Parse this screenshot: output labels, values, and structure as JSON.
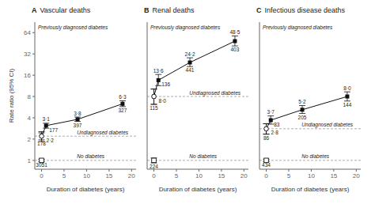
{
  "chart_data": [
    {
      "type": "scatter",
      "panel_label": "A",
      "title": "Vascular deaths",
      "x_label": "Duration of diabetes (years)",
      "y_label": "Rate ratio (95% CI)",
      "log": "y",
      "grid": false,
      "xlim": [
        -1.5,
        21
      ],
      "xticks": [
        0,
        5,
        10,
        15,
        20
      ],
      "ylim": [
        0.75,
        90
      ],
      "yticks": [
        1,
        2,
        4,
        8,
        16,
        32,
        64
      ],
      "series": [
        {
          "name": "Previously diagnosed diabetes",
          "type": "line",
          "marker": "filled_square",
          "line_style": "solid",
          "color": "#111111",
          "x": [
            0,
            1,
            8,
            18
          ],
          "values": [
            2.2,
            3.1,
            3.8,
            6.3
          ],
          "error_lo": [
            0.35,
            0.25,
            0.25,
            0.55
          ],
          "error_hi": [
            0.35,
            0.25,
            0.3,
            0.65
          ],
          "data_labels": true,
          "value_labels": [
            "2·2",
            "3·1",
            "3·8",
            "6·3"
          ],
          "n_labels": [
            null,
            "177",
            "397",
            "327"
          ]
        },
        {
          "name": "Undiagnosed diabetes",
          "type": "scatter",
          "marker": "open_circle",
          "line_style": "dashed",
          "color": "#111111",
          "x": [
            0
          ],
          "values": [
            2.2
          ],
          "error_lo": [
            0.25
          ],
          "error_hi": [
            0.25
          ],
          "n_labels": [
            "178"
          ]
        },
        {
          "name": "No diabetes",
          "type": "scatter",
          "marker": "open_square",
          "line_style": "dashed",
          "color": "#111111",
          "x": [
            0
          ],
          "values": [
            1.0
          ],
          "error_lo": [
            0.04
          ],
          "error_hi": [
            0.04
          ],
          "n_labels": [
            "3051"
          ]
        }
      ]
    },
    {
      "type": "scatter",
      "panel_label": "B",
      "title": "Renal deaths",
      "x_label": "Duration of diabetes (years)",
      "log": "y",
      "grid": false,
      "tick_labels": "x",
      "xlim": [
        -1.5,
        21
      ],
      "xticks": [
        0,
        5,
        10,
        15,
        20
      ],
      "ylim": [
        0.75,
        90
      ],
      "yticks": [
        1,
        2,
        4,
        8,
        16,
        32,
        64
      ],
      "series": [
        {
          "name": "Previously diagnosed diabetes",
          "type": "line",
          "marker": "filled_square",
          "line_style": "solid",
          "color": "#111111",
          "x": [
            0,
            1,
            8,
            18
          ],
          "values": [
            8.0,
            13.6,
            24.2,
            48.5
          ],
          "error_lo": [
            1.8,
            2.2,
            3.0,
            7.0
          ],
          "error_hi": [
            2.2,
            2.8,
            4.0,
            9.0
          ],
          "data_labels": true,
          "value_labels": [
            "8·0",
            "13·6",
            "24·2",
            "48·5"
          ],
          "n_labels": [
            null,
            "136",
            "441",
            "403"
          ]
        },
        {
          "name": "Undiagnosed diabetes",
          "type": "scatter",
          "marker": "open_circle",
          "line_style": "dashed",
          "color": "#111111",
          "x": [
            0
          ],
          "values": [
            8.0
          ],
          "error_lo": [
            1.8
          ],
          "error_hi": [
            2.2
          ],
          "n_labels": [
            "115"
          ]
        },
        {
          "name": "No diabetes",
          "type": "scatter",
          "marker": "open_square",
          "line_style": "dashed",
          "color": "#111111",
          "x": [
            0
          ],
          "values": [
            1.0
          ],
          "error_lo": [
            0.08
          ],
          "error_hi": [
            0.08
          ],
          "n_labels": [
            "224"
          ]
        }
      ]
    },
    {
      "type": "scatter",
      "panel_label": "C",
      "title": "Infectious disease deaths",
      "x_label": "Duration of diabetes (years)",
      "log": "y",
      "grid": false,
      "tick_labels": "x",
      "xlim": [
        -1.5,
        21
      ],
      "xticks": [
        0,
        5,
        10,
        15,
        20
      ],
      "ylim": [
        0.75,
        90
      ],
      "yticks": [
        1,
        2,
        4,
        8,
        16,
        32,
        64
      ],
      "series": [
        {
          "name": "Previously diagnosed diabetes",
          "type": "line",
          "marker": "filled_square",
          "line_style": "solid",
          "color": "#111111",
          "x": [
            0,
            1,
            8,
            18
          ],
          "values": [
            2.8,
            3.7,
            5.2,
            8.0
          ],
          "error_lo": [
            0.45,
            0.45,
            0.6,
            1.1
          ],
          "error_hi": [
            0.5,
            0.55,
            0.75,
            1.3
          ],
          "data_labels": true,
          "value_labels": [
            "2·8",
            "3·7",
            "5·2",
            "8·0"
          ],
          "n_labels": [
            null,
            "83",
            "205",
            "144"
          ]
        },
        {
          "name": "Undiagnosed diabetes",
          "type": "scatter",
          "marker": "open_circle",
          "line_style": "dashed",
          "color": "#111111",
          "x": [
            0
          ],
          "values": [
            2.8
          ],
          "error_lo": [
            0.45
          ],
          "error_hi": [
            0.5
          ],
          "n_labels": [
            "86"
          ]
        },
        {
          "name": "No diabetes",
          "type": "scatter",
          "marker": "open_square",
          "line_style": "dashed",
          "color": "#111111",
          "x": [
            0
          ],
          "values": [
            1.0
          ],
          "error_lo": [
            0.04
          ],
          "error_hi": [
            0.04
          ],
          "n_labels": [
            "434"
          ]
        }
      ]
    }
  ]
}
